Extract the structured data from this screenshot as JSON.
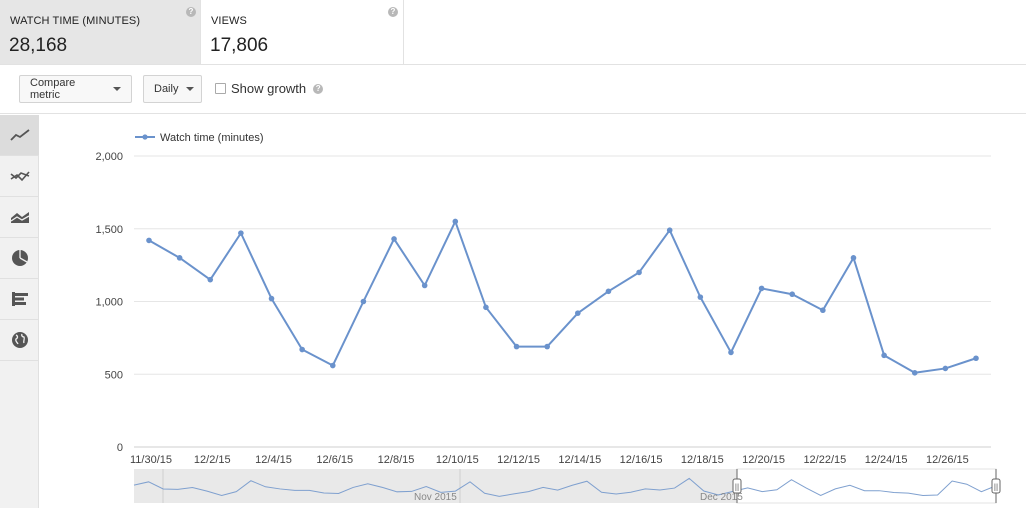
{
  "metrics": [
    {
      "label": "WATCH TIME (MINUTES)",
      "value": "28,168",
      "active": true
    },
    {
      "label": "VIEWS",
      "value": "17,806",
      "active": false
    }
  ],
  "toolbar": {
    "compare_label": "Compare metric",
    "interval_label": "Daily",
    "show_growth_label": "Show growth",
    "help_glyph": "?"
  },
  "sidebar": {
    "items": [
      {
        "icon": "line-chart-icon",
        "active": true
      },
      {
        "icon": "multi-line-chart-icon",
        "active": false
      },
      {
        "icon": "stacked-area-chart-icon",
        "active": false
      },
      {
        "icon": "pie-chart-icon",
        "active": false
      },
      {
        "icon": "bar-chart-icon",
        "active": false
      },
      {
        "icon": "globe-map-icon",
        "active": false
      }
    ]
  },
  "colors": {
    "series": "#6a92cc",
    "grid": "#e6e6e6",
    "active_bg": "#e6e6e6"
  },
  "chart_data": {
    "type": "line",
    "title": "",
    "xlabel": "",
    "ylabel": "",
    "legend_position": "top-left",
    "grid": true,
    "ylim": [
      0,
      2000
    ],
    "y_ticks": [
      "0",
      "500",
      "1,000",
      "1,500",
      "2,000"
    ],
    "y_tick_values": [
      0,
      500,
      1000,
      1500,
      2000
    ],
    "x_tick_labels": [
      "11/30/15",
      "12/2/15",
      "12/4/15",
      "12/6/15",
      "12/8/15",
      "12/10/15",
      "12/12/15",
      "12/14/15",
      "12/16/15",
      "12/18/15",
      "12/20/15",
      "12/22/15",
      "12/24/15",
      "12/26/15"
    ],
    "categories": [
      "11/30/15",
      "12/1/15",
      "12/2/15",
      "12/3/15",
      "12/4/15",
      "12/5/15",
      "12/6/15",
      "12/7/15",
      "12/8/15",
      "12/9/15",
      "12/10/15",
      "12/11/15",
      "12/12/15",
      "12/13/15",
      "12/14/15",
      "12/15/15",
      "12/16/15",
      "12/17/15",
      "12/18/15",
      "12/19/15",
      "12/20/15",
      "12/21/15",
      "12/22/15",
      "12/23/15",
      "12/24/15",
      "12/25/15",
      "12/26/15",
      "12/27/15"
    ],
    "series": [
      {
        "name": "Watch time (minutes)",
        "values": [
          1420,
          1300,
          1150,
          1470,
          1020,
          670,
          560,
          1000,
          1430,
          1110,
          1550,
          960,
          690,
          690,
          920,
          1070,
          1200,
          1490,
          1030,
          650,
          1090,
          1050,
          940,
          1300,
          630,
          510,
          540,
          610
        ]
      }
    ]
  },
  "navigator": {
    "labels": [
      "Nov 2015",
      "Dec 2015"
    ],
    "handle_glyph": "||"
  }
}
